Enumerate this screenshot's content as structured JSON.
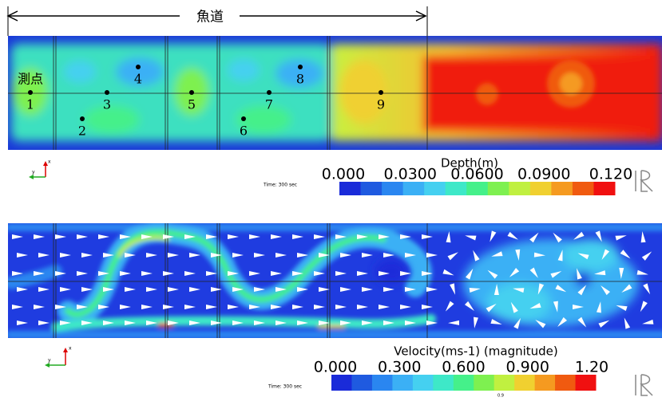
{
  "fishway_label": "魚道",
  "depth_plot": {
    "station_label": "測点",
    "points": [
      "1",
      "2",
      "3",
      "4",
      "5",
      "6",
      "7",
      "8",
      "9"
    ],
    "axes": {
      "x": "x",
      "y": "y"
    },
    "time": "Time: 300 sec"
  },
  "depth_legend": {
    "title": "Depth(m)",
    "ticks": [
      "0.000",
      "0.0300",
      "0.0600",
      "0.0900",
      "0.120"
    ]
  },
  "velocity_plot": {
    "axes": {
      "x": "x",
      "y": "y"
    },
    "time": "Time: 300 sec"
  },
  "velocity_legend": {
    "title": "Velocity(ms-1) (magnitude)",
    "ticks": [
      "0.000",
      "0.300",
      "0.600",
      "0.900",
      "1.20"
    ],
    "note": "0.9"
  }
}
